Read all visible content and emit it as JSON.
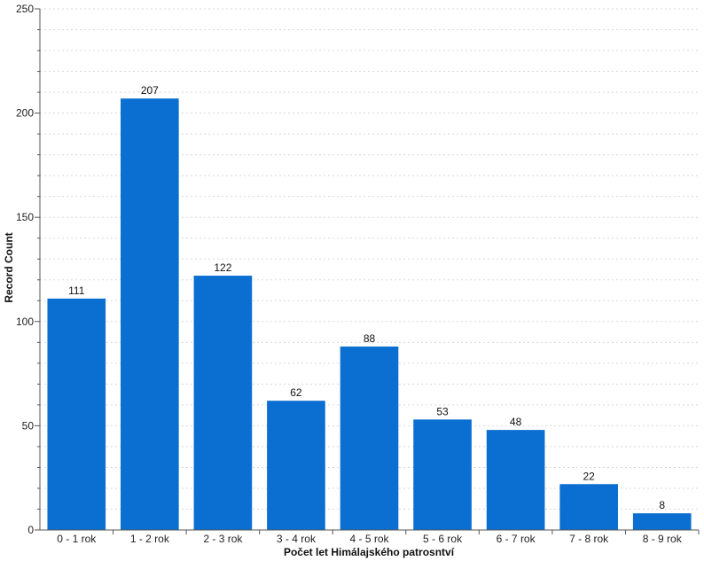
{
  "chart_data": {
    "type": "bar",
    "categories": [
      "0 - 1 rok",
      "1 - 2 rok",
      "2 - 3 rok",
      "3 - 4 rok",
      "4 - 5 rok",
      "5 - 6 rok",
      "6 - 7 rok",
      "7 - 8 rok",
      "8 - 9 rok"
    ],
    "values": [
      111,
      207,
      122,
      62,
      88,
      53,
      48,
      22,
      8
    ],
    "xlabel": "Počet let Himálajského patrosntví",
    "ylabel": "Record Count",
    "ylim": [
      0,
      250
    ],
    "yticks": [
      0,
      50,
      100,
      150,
      200,
      250
    ],
    "grid": true,
    "bar_color": "#0b6fd1"
  }
}
